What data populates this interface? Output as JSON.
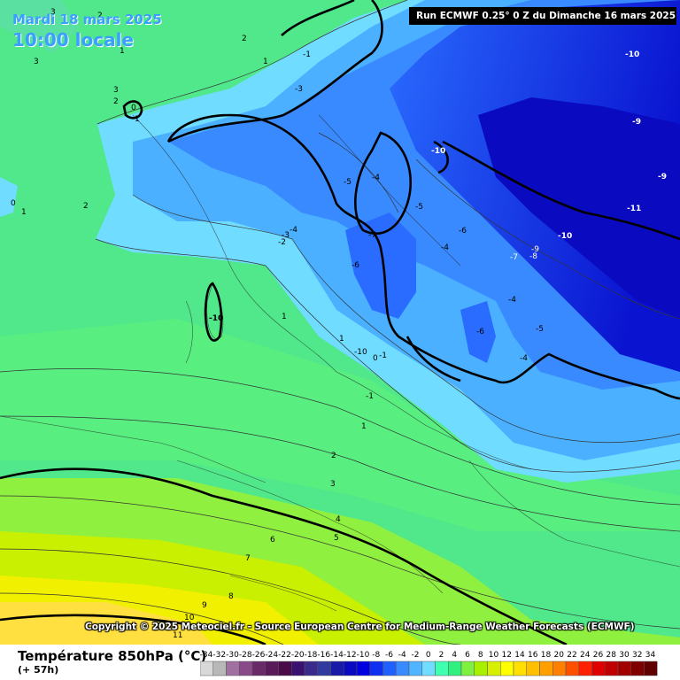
{
  "header": {
    "date": "Mardi 18 mars 2025",
    "time": "10:00 locale",
    "run": "Run ECMWF 0.25° 0 Z du Dimanche 16 mars 2025"
  },
  "copyright": "Copyright © 2025 Meteociel.fr - Source European Centre for Medium-Range Weather Forecasts (ECMWF)",
  "footer": {
    "title": "Température 850hPa (°C)",
    "subtitle": "(+ 57h)"
  },
  "legend": {
    "labels": [
      "-34",
      "-32",
      "-30",
      "-28",
      "-26",
      "-24",
      "-22",
      "-20",
      "-18",
      "-16",
      "-14",
      "-12",
      "-10",
      "-8",
      "-6",
      "-4",
      "-2",
      "0",
      "2",
      "4",
      "6",
      "8",
      "10",
      "12",
      "14",
      "16",
      "18",
      "20",
      "22",
      "24",
      "26",
      "28",
      "30",
      "32",
      "34"
    ],
    "colors": [
      "#d8d8d8",
      "#b8b8b8",
      "#a070a0",
      "#8a4a8a",
      "#6a2a6a",
      "#5a1a5a",
      "#4a0a4a",
      "#3a1070",
      "#3a2a8a",
      "#303aa0",
      "#1a1aa8",
      "#0a0ac0",
      "#0000e0",
      "#1030f0",
      "#2060ff",
      "#3a8aff",
      "#50b4ff",
      "#70dcff",
      "#40ffb0",
      "#30f080",
      "#80f040",
      "#a8f000",
      "#d8f000",
      "#ffff00",
      "#ffe000",
      "#ffc000",
      "#ffa000",
      "#ff8000",
      "#ff5000",
      "#ff2000",
      "#e00000",
      "#c00000",
      "#a00000",
      "#800000",
      "#600000"
    ]
  },
  "contour_labels": [
    "3",
    "2",
    "2",
    "1",
    "3",
    "1",
    "-1",
    "-3",
    "3",
    "2",
    "0",
    "1",
    "-10",
    "-10",
    "-9",
    "-10",
    "-9",
    "-11",
    "-10",
    "0",
    "1",
    "2",
    "-5",
    "-4",
    "-5",
    "-7",
    "-6",
    "-4",
    "-6",
    "-4",
    "-3",
    "-2",
    "-9",
    "-7",
    "-8",
    "-4",
    "-5",
    "-6",
    "-4",
    "-10",
    "1",
    "1",
    "0",
    "-1",
    "-1",
    "1",
    "2",
    "3",
    "4",
    "6",
    "5",
    "7",
    "8",
    "9",
    "10",
    "11"
  ]
}
